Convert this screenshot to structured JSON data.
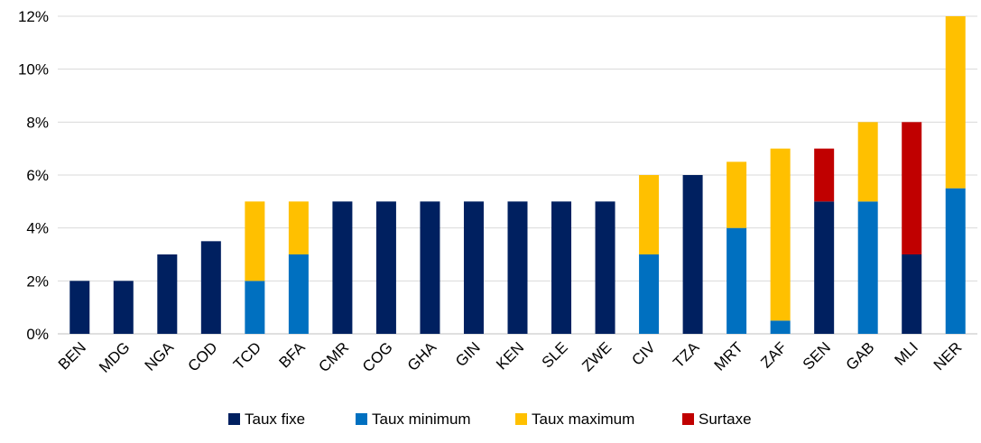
{
  "chart_data": {
    "type": "bar",
    "stacked": true,
    "categories": [
      "BEN",
      "MDG",
      "NGA",
      "COD",
      "TCD",
      "BFA",
      "CMR",
      "COG",
      "GHA",
      "GIN",
      "KEN",
      "SLE",
      "ZWE",
      "CIV",
      "TZA",
      "MRT",
      "ZAF",
      "SEN",
      "GAB",
      "MLI",
      "NER"
    ],
    "series": [
      {
        "name": "Taux fixe",
        "color": "#002060",
        "values": [
          2,
          2,
          3,
          3.5,
          0,
          0,
          5,
          5,
          5,
          5,
          5,
          5,
          5,
          0,
          6,
          0,
          0,
          5,
          0,
          3,
          0
        ]
      },
      {
        "name": "Taux minimum",
        "color": "#0070C0",
        "values": [
          0,
          0,
          0,
          0,
          2,
          3,
          0,
          0,
          0,
          0,
          0,
          0,
          0,
          3,
          0,
          4,
          0.5,
          0,
          5,
          0,
          5.5
        ]
      },
      {
        "name": "Taux maximum",
        "color": "#FFC000",
        "values": [
          0,
          0,
          0,
          0,
          3,
          2,
          0,
          0,
          0,
          0,
          0,
          0,
          0,
          3,
          0,
          2.5,
          6.5,
          0,
          3,
          0,
          6.5
        ]
      },
      {
        "name": "Surtaxe",
        "color": "#C00000",
        "values": [
          0,
          0,
          0,
          0,
          0,
          0,
          0,
          0,
          0,
          0,
          0,
          0,
          0,
          0,
          0,
          0,
          0,
          2,
          0,
          5,
          0
        ]
      }
    ],
    "ylim": [
      0,
      12
    ],
    "yticks": [
      0,
      2,
      4,
      6,
      8,
      10,
      12
    ],
    "ytick_labels": [
      "0%",
      "2%",
      "4%",
      "6%",
      "8%",
      "10%",
      "12%"
    ],
    "grid": true,
    "legend_position": "bottom"
  }
}
